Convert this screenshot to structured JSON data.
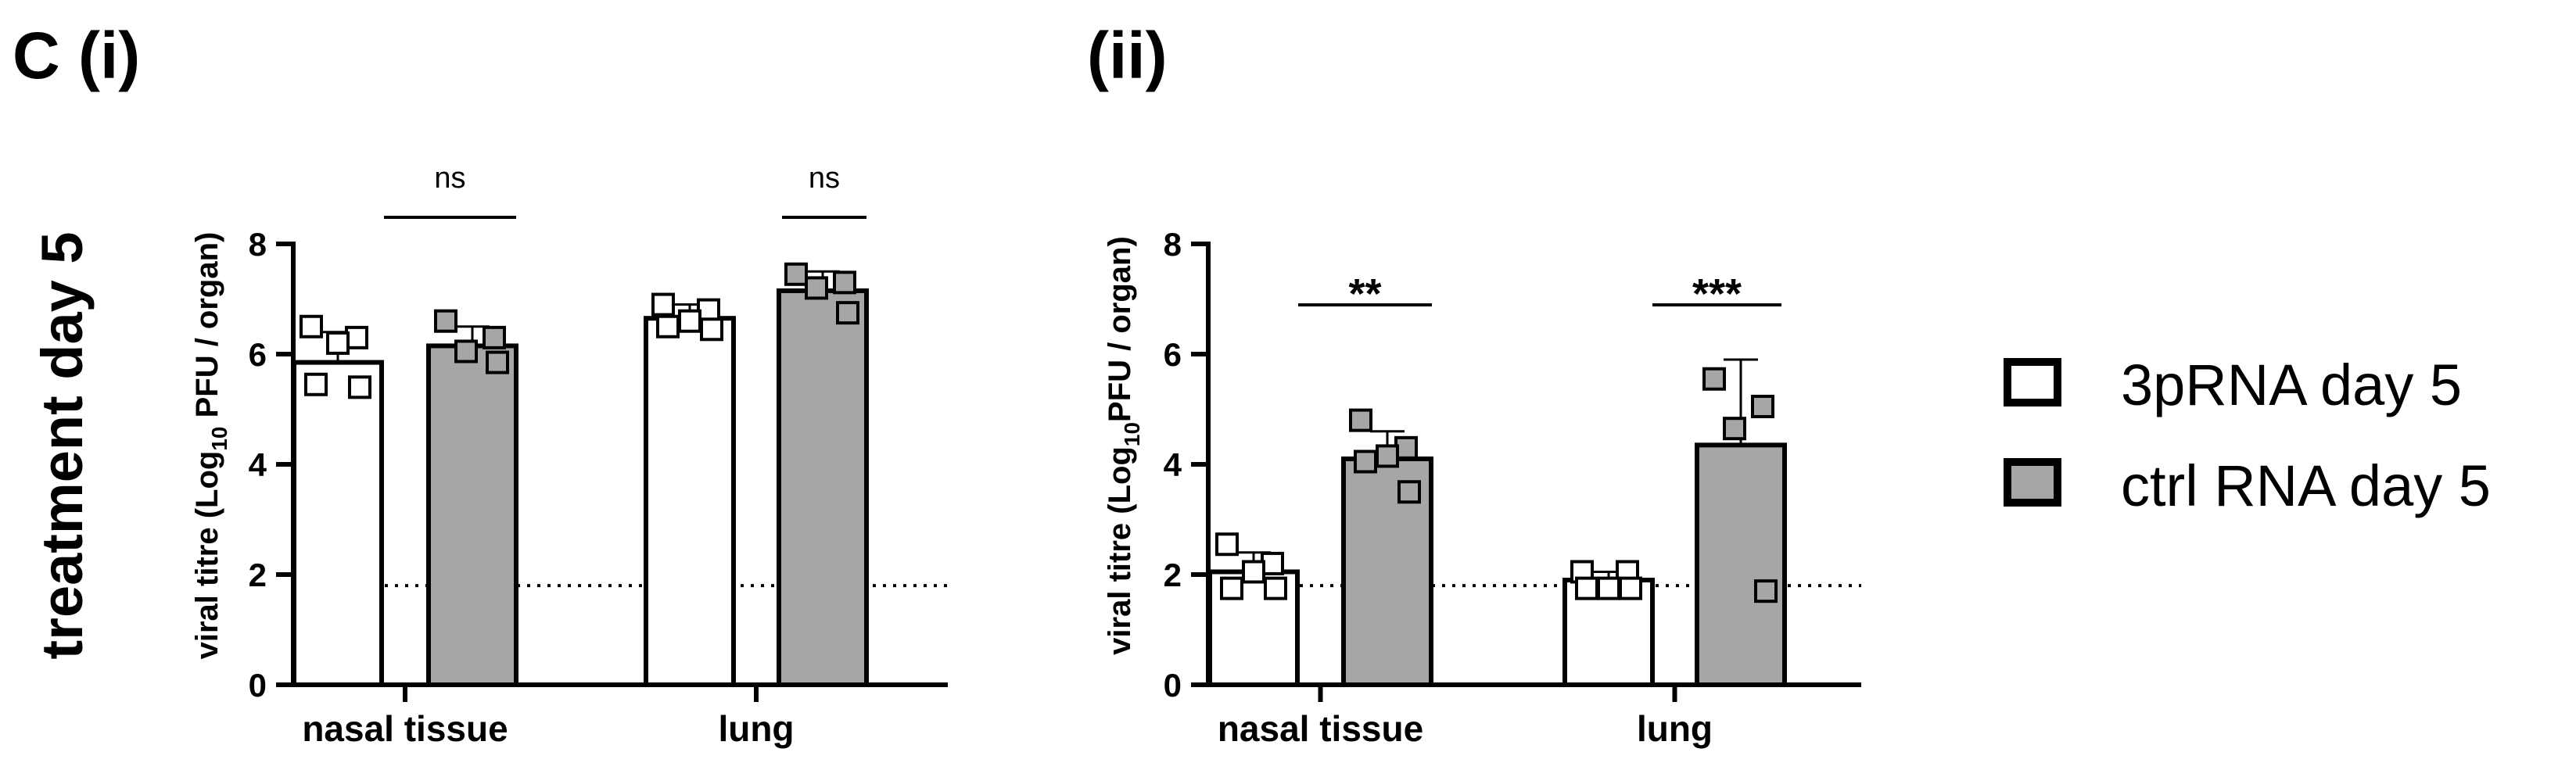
{
  "figure": {
    "row_label": "treatment day 5"
  },
  "legend": [
    {
      "label": "3pRNA day 5",
      "fill": "#ffffff"
    },
    {
      "label": "ctrl RNA day 5",
      "fill": "#a6a6a6"
    }
  ],
  "colors": {
    "open": "#ffffff",
    "filled": "#a6a6a6",
    "stroke": "#000000"
  },
  "chart_data": [
    {
      "type": "bar",
      "panel_label": "C (i)",
      "title": "",
      "xlabel": "",
      "ylabel": "viral titre (Log10 PFU / organ)",
      "ylabel_parts": {
        "pre": "viral titre (Log",
        "sub": "10",
        "post": " PFU / organ)"
      },
      "ylim": [
        0,
        8
      ],
      "yticks": [
        "0",
        "2",
        "4",
        "6",
        "8"
      ],
      "detection_limit": 1.8,
      "categories": [
        "nasal tissue",
        "lung"
      ],
      "series": [
        {
          "name": "3pRNA day 5",
          "values": [
            5.85,
            6.65
          ],
          "sd": [
            0.55,
            0.25
          ],
          "points": [
            [
              6.5,
              6.3,
              6.2,
              5.45,
              5.4
            ],
            [
              6.9,
              6.8,
              6.6,
              6.5,
              6.45
            ]
          ]
        },
        {
          "name": "ctrl RNA day 5",
          "values": [
            6.15,
            7.15
          ],
          "sd": [
            0.35,
            0.35
          ],
          "points": [
            [
              6.6,
              6.3,
              6.05,
              5.85
            ],
            [
              7.45,
              7.3,
              7.2,
              6.75
            ]
          ]
        }
      ],
      "comparisons": [
        "ns",
        "ns"
      ]
    },
    {
      "type": "bar",
      "panel_label": "(ii)",
      "title": "",
      "xlabel": "",
      "ylabel": "viral titre (Log10PFU / organ)",
      "ylabel_parts": {
        "pre": "viral titre (Log",
        "sub": "10",
        "post": "PFU / organ)"
      },
      "ylim": [
        0,
        8
      ],
      "yticks": [
        "0",
        "2",
        "4",
        "6",
        "8"
      ],
      "detection_limit": 1.8,
      "categories": [
        "nasal tissue",
        "lung"
      ],
      "series": [
        {
          "name": "3pRNA day 5",
          "values": [
            2.05,
            1.9
          ],
          "sd": [
            0.35,
            0.15
          ],
          "points": [
            [
              2.55,
              2.2,
              2.05,
              1.75,
              1.75
            ],
            [
              2.05,
              2.05,
              1.75,
              1.75,
              1.75
            ]
          ]
        },
        {
          "name": "ctrl RNA day 5",
          "values": [
            4.1,
            4.35
          ],
          "sd": [
            0.5,
            1.55
          ],
          "points": [
            [
              4.8,
              4.3,
              4.15,
              4.05,
              3.5
            ],
            [
              5.55,
              5.05,
              4.65,
              1.7
            ]
          ]
        }
      ],
      "comparisons": [
        "**",
        "***"
      ]
    }
  ]
}
